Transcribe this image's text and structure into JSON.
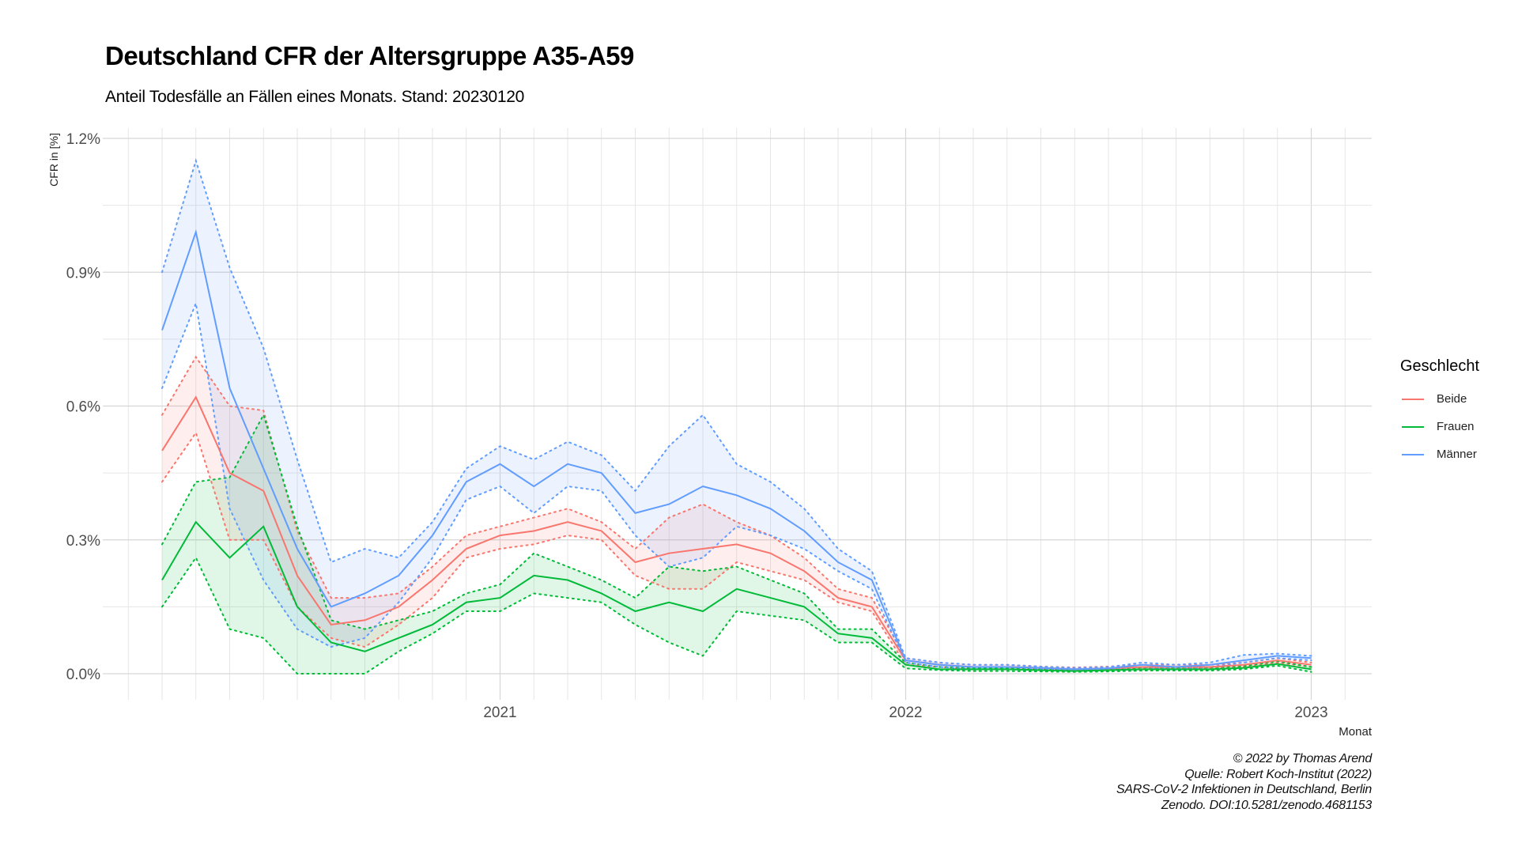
{
  "chart_data": {
    "type": "line",
    "title": "Deutschland CFR der Altersgruppe A35-A59",
    "subtitle": "Anteil Todesfälle an Fällen eines Monats. Stand: 20230120",
    "ylabel": "CFR in [%]",
    "xlabel": "Monat",
    "ylim": [
      -0.0005,
      0.012
    ],
    "yticks": [
      0,
      0.003,
      0.006,
      0.009,
      0.012
    ],
    "ytick_labels": [
      "0.0%",
      "0.3%",
      "0.6%",
      "0.9%",
      "1.2%"
    ],
    "xticks": [
      {
        "label": "2021",
        "index": 10
      },
      {
        "label": "2022",
        "index": 22
      },
      {
        "label": "2023",
        "index": 34
      }
    ],
    "x_months": [
      "2020-03",
      "2020-04",
      "2020-05",
      "2020-06",
      "2020-07",
      "2020-08",
      "2020-09",
      "2020-10",
      "2020-11",
      "2020-12",
      "2021-01",
      "2021-02",
      "2021-03",
      "2021-04",
      "2021-05",
      "2021-06",
      "2021-07",
      "2021-08",
      "2021-09",
      "2021-10",
      "2021-11",
      "2021-12",
      "2022-01",
      "2022-02",
      "2022-03",
      "2022-04",
      "2022-05",
      "2022-06",
      "2022-07",
      "2022-08",
      "2022-09",
      "2022-10",
      "2022-11",
      "2022-12",
      "2023-01"
    ],
    "legend_title": "Geschlecht",
    "legend_position": "right",
    "series": [
      {
        "name": "Beide",
        "color": "#F8766D",
        "values": [
          0.005,
          0.0062,
          0.0045,
          0.0041,
          0.0022,
          0.0011,
          0.0012,
          0.0015,
          0.0021,
          0.0028,
          0.0031,
          0.0032,
          0.0034,
          0.0032,
          0.0025,
          0.0027,
          0.0028,
          0.0029,
          0.0027,
          0.0023,
          0.0017,
          0.0015,
          0.0003,
          0.0002,
          0.00015,
          0.00015,
          0.00013,
          0.0001,
          0.00012,
          0.00015,
          0.00015,
          0.00015,
          0.0002,
          0.0003,
          0.0002
        ],
        "lower": [
          0.0043,
          0.0054,
          0.003,
          0.003,
          0.0015,
          0.0008,
          0.0006,
          0.0011,
          0.0017,
          0.0026,
          0.0028,
          0.0029,
          0.0031,
          0.003,
          0.0022,
          0.0019,
          0.0019,
          0.0025,
          0.0023,
          0.0021,
          0.0016,
          0.0014,
          0.0002,
          0.00015,
          0.0001,
          0.0001,
          0.0001,
          8e-05,
          0.0001,
          0.00012,
          0.00012,
          0.00012,
          0.00015,
          0.00025,
          0.00015
        ],
        "upper": [
          0.0058,
          0.0071,
          0.006,
          0.0059,
          0.0032,
          0.0017,
          0.0017,
          0.0018,
          0.0024,
          0.0031,
          0.0033,
          0.0035,
          0.0037,
          0.0034,
          0.0028,
          0.0035,
          0.0038,
          0.0034,
          0.0031,
          0.0026,
          0.0019,
          0.0017,
          0.00035,
          0.00025,
          0.0002,
          0.0002,
          0.00016,
          0.00014,
          0.00016,
          0.0002,
          0.0002,
          0.0002,
          0.00025,
          0.00035,
          0.00025
        ]
      },
      {
        "name": "Frauen",
        "color": "#00BA38",
        "values": [
          0.0021,
          0.0034,
          0.0026,
          0.0033,
          0.0015,
          0.0007,
          0.0005,
          0.0008,
          0.0011,
          0.0016,
          0.0017,
          0.0022,
          0.0021,
          0.0018,
          0.0014,
          0.0016,
          0.0014,
          0.0019,
          0.0017,
          0.0015,
          0.0009,
          0.0008,
          0.0002,
          0.0001,
          0.0001,
          0.0001,
          8e-05,
          6e-05,
          8e-05,
          0.0001,
          0.0001,
          0.0001,
          0.00013,
          0.00022,
          0.0001
        ],
        "lower": [
          0.0015,
          0.0026,
          0.001,
          0.0008,
          0.0,
          0.0,
          0.0,
          0.0005,
          0.0009,
          0.0014,
          0.0014,
          0.0018,
          0.0017,
          0.0016,
          0.0011,
          0.0007,
          0.0004,
          0.0014,
          0.0013,
          0.0012,
          0.0007,
          0.0007,
          0.00012,
          8e-05,
          6e-05,
          6e-05,
          5e-05,
          4e-05,
          5e-05,
          7e-05,
          7e-05,
          7e-05,
          0.0001,
          0.00018,
          4e-05
        ],
        "upper": [
          0.0029,
          0.0043,
          0.0044,
          0.0058,
          0.0033,
          0.0012,
          0.001,
          0.0012,
          0.0014,
          0.0018,
          0.002,
          0.0027,
          0.0024,
          0.0021,
          0.0017,
          0.0024,
          0.0023,
          0.0024,
          0.0021,
          0.0018,
          0.001,
          0.001,
          0.00025,
          0.00015,
          0.00013,
          0.00013,
          0.0001,
          9e-05,
          0.0001,
          0.00014,
          0.00014,
          0.00014,
          0.00017,
          0.00028,
          0.00015
        ]
      },
      {
        "name": "Männer",
        "color": "#619CFF",
        "values": [
          0.0077,
          0.0099,
          0.0064,
          0.0046,
          0.0028,
          0.0015,
          0.0018,
          0.0022,
          0.0031,
          0.0043,
          0.0047,
          0.0042,
          0.0047,
          0.0045,
          0.0036,
          0.0038,
          0.0042,
          0.004,
          0.0037,
          0.0032,
          0.0025,
          0.0021,
          0.0003,
          0.0002,
          0.00015,
          0.00015,
          0.00013,
          0.0001,
          0.00012,
          0.0002,
          0.00015,
          0.0002,
          0.0003,
          0.0004,
          0.00035
        ],
        "lower": [
          0.0064,
          0.0083,
          0.0037,
          0.0021,
          0.001,
          0.0006,
          0.0008,
          0.0016,
          0.0026,
          0.0039,
          0.0042,
          0.0036,
          0.0042,
          0.0041,
          0.0031,
          0.0024,
          0.0026,
          0.0033,
          0.0031,
          0.0028,
          0.0023,
          0.0019,
          0.00025,
          0.00015,
          0.0001,
          0.0001,
          0.0001,
          8e-05,
          0.0001,
          0.00015,
          0.0001,
          0.00015,
          0.00025,
          0.00035,
          0.0003
        ],
        "upper": [
          0.009,
          0.0115,
          0.0091,
          0.0073,
          0.0048,
          0.0025,
          0.0028,
          0.0026,
          0.0034,
          0.0046,
          0.0051,
          0.0048,
          0.0052,
          0.0049,
          0.0041,
          0.0051,
          0.0058,
          0.0047,
          0.0043,
          0.0037,
          0.0028,
          0.0023,
          0.00035,
          0.00025,
          0.0002,
          0.0002,
          0.00016,
          0.00013,
          0.00015,
          0.00025,
          0.0002,
          0.00025,
          0.00042,
          0.00045,
          0.0004
        ]
      }
    ],
    "caption": [
      "© 2022 by Thomas Arend",
      "Quelle: Robert Koch-Institut (2022)",
      "SARS-CoV-2 Infektionen in Deutschland, Berlin",
      "Zenodo. DOI:10.5281/zenodo.4681153"
    ]
  }
}
